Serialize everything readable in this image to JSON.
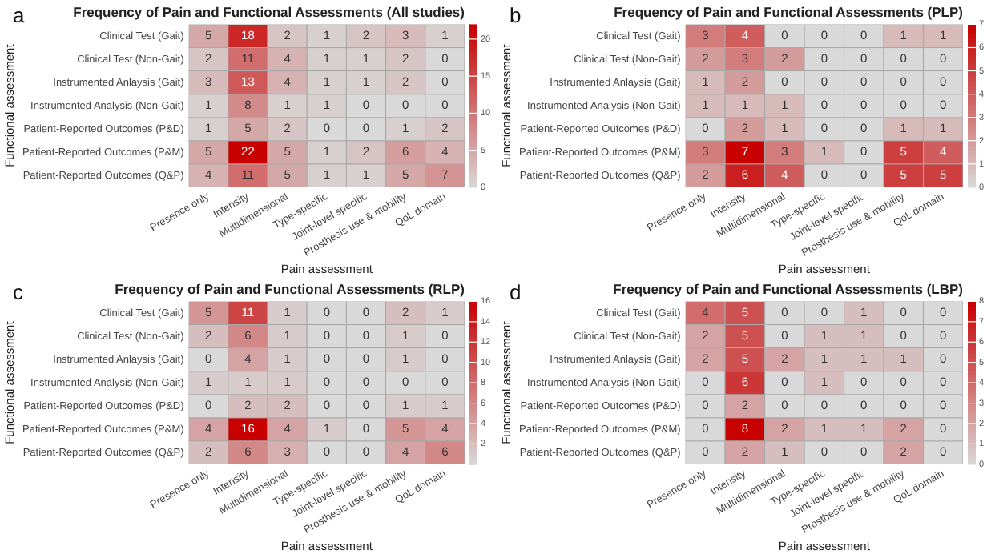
{
  "chart_data": [
    {
      "type": "heatmap",
      "title": "Frequency of Pain and Functional Assessments (All studies)",
      "xlabel": "Pain assessment",
      "ylabel": "Functional assessment",
      "annotations": [
        "a"
      ],
      "categories": [
        "Presence only",
        "Intensity",
        "Multidimensional",
        "Type-specific",
        "Joint-level specific",
        "Prosthesis use & mobility",
        "QoL domain"
      ],
      "y_categories": [
        "Clinical Test (Gait)",
        "Clinical Test (Non-Gait)",
        "Instrumented Anlaysis (Gait)",
        "Instrumented Analysis (Non-Gait)",
        "Patient-Reported Outcomes (P&D)",
        "Patient-Reported Outcomes (P&M)",
        "Patient-Reported Outcomes (Q&P)"
      ],
      "cells": [
        [
          5,
          18,
          2,
          1,
          2,
          3,
          1
        ],
        [
          2,
          11,
          4,
          1,
          1,
          2,
          0
        ],
        [
          3,
          13,
          4,
          1,
          1,
          2,
          0
        ],
        [
          1,
          8,
          1,
          1,
          0,
          0,
          0
        ],
        [
          1,
          5,
          2,
          0,
          0,
          1,
          2
        ],
        [
          5,
          22,
          5,
          1,
          2,
          6,
          4
        ],
        [
          4,
          11,
          5,
          1,
          1,
          5,
          7
        ]
      ],
      "clim": [
        0,
        22
      ],
      "cticks": [
        0,
        5,
        10,
        15,
        20
      ],
      "data_labels": true
    },
    {
      "type": "heatmap",
      "title": "Frequency of Pain and Functional Assessments (PLP)",
      "xlabel": "Pain assessment",
      "ylabel": "Functional assessment",
      "annotations": [
        "b"
      ],
      "categories": [
        "Presence only",
        "Intensity",
        "Multidimensional",
        "Type-specific",
        "Joint-level specific",
        "Prosthesis use & mobility",
        "QoL domain"
      ],
      "y_categories": [
        "Clinical Test (Gait)",
        "Clinical Test (Non-Gait)",
        "Instrumented Anlaysis (Gait)",
        "Instrumented Analysis (Non-Gait)",
        "Patient-Reported Outcomes (P&D)",
        "Patient-Reported Outcomes (P&M)",
        "Patient-Reported Outcomes (Q&P)"
      ],
      "cells": [
        [
          3,
          4,
          0,
          0,
          0,
          1,
          1
        ],
        [
          2,
          3,
          2,
          0,
          0,
          0,
          0
        ],
        [
          1,
          2,
          0,
          0,
          0,
          0,
          0
        ],
        [
          1,
          1,
          1,
          0,
          0,
          0,
          0
        ],
        [
          0,
          2,
          1,
          0,
          0,
          1,
          1
        ],
        [
          3,
          7,
          3,
          1,
          0,
          5,
          4
        ],
        [
          2,
          6,
          4,
          0,
          0,
          5,
          5
        ]
      ],
      "clim": [
        0,
        7
      ],
      "cticks": [
        0,
        1,
        2,
        3,
        4,
        5,
        6,
        7
      ],
      "data_labels": true
    },
    {
      "type": "heatmap",
      "title": "Frequency of Pain and Functional Assessments (RLP)",
      "xlabel": "Pain assessment",
      "ylabel": "Functional assessment",
      "annotations": [
        "c"
      ],
      "categories": [
        "Presence only",
        "Intensity",
        "Multidimensional",
        "Type-specific",
        "Joint-level specific",
        "Prosthesis use & mobility",
        "QoL domain"
      ],
      "y_categories": [
        "Clinical Test (Gait)",
        "Clinical Test (Non-Gait)",
        "Instrumented Anlaysis (Gait)",
        "Instrumented Analysis (Non-Gait)",
        "Patient-Reported Outcomes (P&D)",
        "Patient-Reported Outcomes (P&M)",
        "Patient-Reported Outcomes (Q&P)"
      ],
      "cells": [
        [
          5,
          11,
          1,
          0,
          0,
          2,
          1
        ],
        [
          2,
          6,
          1,
          0,
          0,
          1,
          0
        ],
        [
          0,
          4,
          1,
          0,
          0,
          1,
          0
        ],
        [
          1,
          1,
          1,
          0,
          0,
          0,
          0
        ],
        [
          0,
          2,
          2,
          0,
          0,
          1,
          1
        ],
        [
          4,
          16,
          4,
          1,
          0,
          5,
          4
        ],
        [
          2,
          6,
          3,
          0,
          0,
          4,
          6
        ]
      ],
      "clim": [
        0,
        16
      ],
      "cticks": [
        2,
        4,
        6,
        8,
        10,
        12,
        14,
        16
      ],
      "data_labels": true
    },
    {
      "type": "heatmap",
      "title": "Frequency of Pain and Functional Assessments (LBP)",
      "xlabel": "Pain assessment",
      "ylabel": "Functional assessment",
      "annotations": [
        "d"
      ],
      "categories": [
        "Presence only",
        "Intensity",
        "Multidimensional",
        "Type-specific",
        "Joint-level specific",
        "Prosthesis use & mobility",
        "QoL domain"
      ],
      "y_categories": [
        "Clinical Test (Gait)",
        "Clinical Test (Non-Gait)",
        "Instrumented Anlaysis (Gait)",
        "Instrumented Analysis (Non-Gait)",
        "Patient-Reported Outcomes (P&D)",
        "Patient-Reported Outcomes (P&M)",
        "Patient-Reported Outcomes (Q&P)"
      ],
      "cells": [
        [
          4,
          5,
          0,
          0,
          1,
          0,
          0
        ],
        [
          2,
          5,
          0,
          1,
          1,
          0,
          0
        ],
        [
          2,
          5,
          2,
          1,
          1,
          1,
          0
        ],
        [
          0,
          6,
          0,
          1,
          0,
          0,
          0
        ],
        [
          0,
          2,
          0,
          0,
          0,
          0,
          0
        ],
        [
          0,
          8,
          2,
          1,
          1,
          2,
          0
        ],
        [
          0,
          2,
          1,
          0,
          0,
          2,
          0
        ]
      ],
      "clim": [
        0,
        8
      ],
      "cticks": [
        0,
        1,
        2,
        3,
        4,
        5,
        6,
        7,
        8
      ],
      "data_labels": true
    }
  ]
}
